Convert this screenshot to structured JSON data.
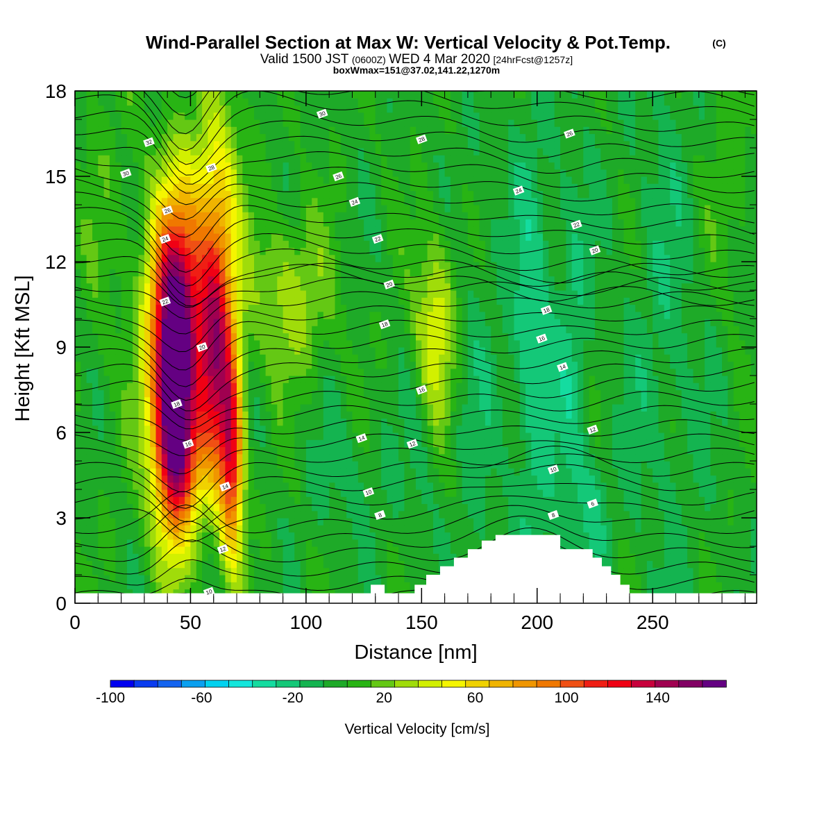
{
  "title": {
    "main": "Wind-Parallel Section at Max W: Vertical Velocity & Pot.Temp.",
    "copyright": "(C)",
    "valid_prefix": "Valid 1500 JST",
    "valid_utc": "(0600Z)",
    "valid_date": "WED 4 Mar 2020",
    "forecast": "[24hrFcst@1257z]",
    "box": "boxWmax=151@37.02,141.22,1270m"
  },
  "chart_data": {
    "type": "heatmap",
    "xlabel": "Distance [nm]",
    "ylabel": "Height [Kft MSL]",
    "xlim": [
      0,
      295
    ],
    "ylim": [
      0,
      18
    ],
    "x_ticks": [
      0,
      50,
      100,
      150,
      200,
      250
    ],
    "y_ticks": [
      0,
      3,
      6,
      9,
      12,
      15,
      18
    ],
    "colorbar": {
      "label": "Vertical Velocity [cm/s]",
      "range": [
        -100,
        170
      ],
      "tick_values": [
        -100,
        -60,
        -20,
        20,
        60,
        100,
        140
      ],
      "colors": [
        "#0000f0",
        "#0a3cf0",
        "#1464f0",
        "#0aa0f0",
        "#00d2f0",
        "#14e6dc",
        "#14dca0",
        "#14c878",
        "#14b450",
        "#1eaa28",
        "#28b414",
        "#64c814",
        "#a0dc0a",
        "#d2f000",
        "#f5f500",
        "#f0d200",
        "#f0b400",
        "#f09600",
        "#f07800",
        "#f05014",
        "#f01e14",
        "#f00014",
        "#c8003c",
        "#a00050",
        "#820064",
        "#640082"
      ]
    },
    "terrain": [
      [
        0,
        0.35
      ],
      [
        128,
        0.35
      ],
      [
        128,
        0.65
      ],
      [
        134,
        0.65
      ],
      [
        134,
        0.35
      ],
      [
        147,
        0.35
      ],
      [
        147,
        0.65
      ],
      [
        152,
        0.65
      ],
      [
        152,
        1.0
      ],
      [
        158,
        1.0
      ],
      [
        158,
        1.3
      ],
      [
        164,
        1.3
      ],
      [
        164,
        1.6
      ],
      [
        170,
        1.6
      ],
      [
        170,
        1.9
      ],
      [
        176,
        1.9
      ],
      [
        176,
        2.2
      ],
      [
        182,
        2.2
      ],
      [
        182,
        2.4
      ],
      [
        210,
        2.4
      ],
      [
        210,
        1.9
      ],
      [
        224,
        1.9
      ],
      [
        224,
        1.6
      ],
      [
        228,
        1.6
      ],
      [
        228,
        1.3
      ],
      [
        232,
        1.3
      ],
      [
        232,
        1.0
      ],
      [
        236,
        1.0
      ],
      [
        236,
        0.65
      ],
      [
        240,
        0.65
      ],
      [
        240,
        0.35
      ],
      [
        295,
        0.35
      ]
    ],
    "w_blobs": [
      {
        "x": 43,
        "y": 7.8,
        "sx": 7,
        "sy": 3.6,
        "w": 150
      },
      {
        "x": 42,
        "y": 10.4,
        "sx": 8,
        "sy": 3.0,
        "w": 60
      },
      {
        "x": 45,
        "y": 5.0,
        "sx": 6,
        "sy": 1.6,
        "w": 60
      },
      {
        "x": 61,
        "y": 8.2,
        "sx": 5,
        "sy": 3.0,
        "w": 105
      },
      {
        "x": 58,
        "y": 12.2,
        "sx": 8,
        "sy": 3.0,
        "w": 60
      },
      {
        "x": 68,
        "y": 5.2,
        "sx": 3.5,
        "sy": 2.6,
        "w": 110
      },
      {
        "x": 64,
        "y": 15.0,
        "sx": 6,
        "sy": 2.5,
        "w": 20
      },
      {
        "x": 93,
        "y": 10.8,
        "sx": 12,
        "sy": 2.0,
        "w": 32
      },
      {
        "x": 156,
        "y": 9.8,
        "sx": 6,
        "sy": 2.3,
        "w": 45
      },
      {
        "x": 150,
        "y": 5.0,
        "sx": 4,
        "sy": 2.0,
        "w": -10
      },
      {
        "x": 175,
        "y": 8.0,
        "sx": 8,
        "sy": 6.0,
        "w": -10
      },
      {
        "x": 198,
        "y": 8.5,
        "sx": 6,
        "sy": 6.0,
        "w": -25
      },
      {
        "x": 215,
        "y": 8.0,
        "sx": 5,
        "sy": 5.5,
        "w": -20
      },
      {
        "x": 225,
        "y": 3.5,
        "sx": 5,
        "sy": 1.5,
        "w": -18
      },
      {
        "x": 255,
        "y": 10.0,
        "sx": 12,
        "sy": 7.0,
        "w": -12
      },
      {
        "x": 120,
        "y": 4.5,
        "sx": 14,
        "sy": 1.5,
        "w": -10
      },
      {
        "x": 15,
        "y": 14.0,
        "sx": 12,
        "sy": 6.0,
        "w": 8
      },
      {
        "x": 285,
        "y": 15.0,
        "sx": 10,
        "sy": 3.0,
        "w": 10
      }
    ],
    "theta_labels": [
      {
        "x": 32,
        "y": 16.2,
        "text": "32"
      },
      {
        "x": 22,
        "y": 15.1,
        "text": "30"
      },
      {
        "x": 59,
        "y": 15.3,
        "text": "28"
      },
      {
        "x": 40,
        "y": 13.8,
        "text": "26"
      },
      {
        "x": 39,
        "y": 12.8,
        "text": "24"
      },
      {
        "x": 39,
        "y": 10.6,
        "text": "22"
      },
      {
        "x": 55,
        "y": 9.0,
        "text": "20"
      },
      {
        "x": 44,
        "y": 7.0,
        "text": "18"
      },
      {
        "x": 49,
        "y": 5.6,
        "text": "16"
      },
      {
        "x": 65,
        "y": 4.1,
        "text": "14"
      },
      {
        "x": 64,
        "y": 1.9,
        "text": "12"
      },
      {
        "x": 58,
        "y": 0.4,
        "text": "10"
      },
      {
        "x": 107,
        "y": 17.2,
        "text": "30"
      },
      {
        "x": 150,
        "y": 16.3,
        "text": "28"
      },
      {
        "x": 114,
        "y": 15.0,
        "text": "26"
      },
      {
        "x": 121,
        "y": 14.1,
        "text": "24"
      },
      {
        "x": 131,
        "y": 12.8,
        "text": "22"
      },
      {
        "x": 136,
        "y": 11.2,
        "text": "20"
      },
      {
        "x": 134,
        "y": 9.8,
        "text": "18"
      },
      {
        "x": 150,
        "y": 7.5,
        "text": "16"
      },
      {
        "x": 124,
        "y": 5.8,
        "text": "14"
      },
      {
        "x": 146,
        "y": 5.6,
        "text": "12"
      },
      {
        "x": 127,
        "y": 3.9,
        "text": "10"
      },
      {
        "x": 132,
        "y": 3.1,
        "text": "8"
      },
      {
        "x": 214,
        "y": 16.5,
        "text": "26"
      },
      {
        "x": 192,
        "y": 14.5,
        "text": "24"
      },
      {
        "x": 217,
        "y": 13.3,
        "text": "22"
      },
      {
        "x": 225,
        "y": 12.4,
        "text": "20"
      },
      {
        "x": 204,
        "y": 10.3,
        "text": "18"
      },
      {
        "x": 202,
        "y": 9.3,
        "text": "16"
      },
      {
        "x": 211,
        "y": 8.3,
        "text": "14"
      },
      {
        "x": 224,
        "y": 6.1,
        "text": "12"
      },
      {
        "x": 207,
        "y": 4.7,
        "text": "10"
      },
      {
        "x": 207,
        "y": 3.1,
        "text": "8"
      },
      {
        "x": 224,
        "y": 3.5,
        "text": "6"
      }
    ]
  }
}
